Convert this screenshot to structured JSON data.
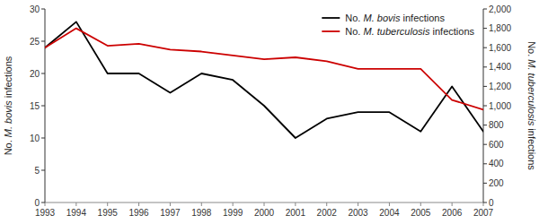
{
  "chart_data": {
    "type": "line",
    "ylabel": "No. M. bovis infections",
    "y2label": "No. M. tuberculosis infections",
    "x": [
      1993,
      1994,
      1995,
      1996,
      1997,
      1998,
      1999,
      2000,
      2001,
      2002,
      2003,
      2004,
      2005,
      2006,
      2007
    ],
    "xlim": [
      1993,
      2007
    ],
    "xticks": [
      1993,
      1994,
      1995,
      1996,
      1997,
      1998,
      1999,
      2000,
      2001,
      2002,
      2003,
      2004,
      2005,
      2006,
      2007
    ],
    "ylim": [
      0,
      30
    ],
    "yticks": [
      0,
      5,
      10,
      15,
      20,
      25,
      30
    ],
    "y2lim": [
      0,
      2000
    ],
    "y2ticks": [
      0,
      200,
      400,
      600,
      800,
      {
        "value": 1000,
        "label": "1,000"
      },
      {
        "value": 1200,
        "label": "1,200"
      },
      {
        "value": 1400,
        "label": "1,400"
      },
      {
        "value": 1600,
        "label": "1,600"
      },
      {
        "value": 1800,
        "label": "1,800"
      },
      {
        "value": 2000,
        "label": "2,000"
      }
    ],
    "series": [
      {
        "name": "No. M. bovis infections",
        "color": "#000000",
        "values": [
          24,
          28,
          20,
          20,
          17,
          20,
          19,
          15,
          10,
          13,
          14,
          14,
          11,
          18,
          11
        ]
      },
      {
        "name": "No. M. tuberculosis infections",
        "color": "#cc0000",
        "axis": "y2",
        "values": [
          1600,
          1800,
          1620,
          1640,
          1580,
          1560,
          1520,
          1480,
          1500,
          1460,
          1380,
          1380,
          1380,
          1060,
          960
        ]
      }
    ],
    "legend": "upper right",
    "grid": false
  }
}
